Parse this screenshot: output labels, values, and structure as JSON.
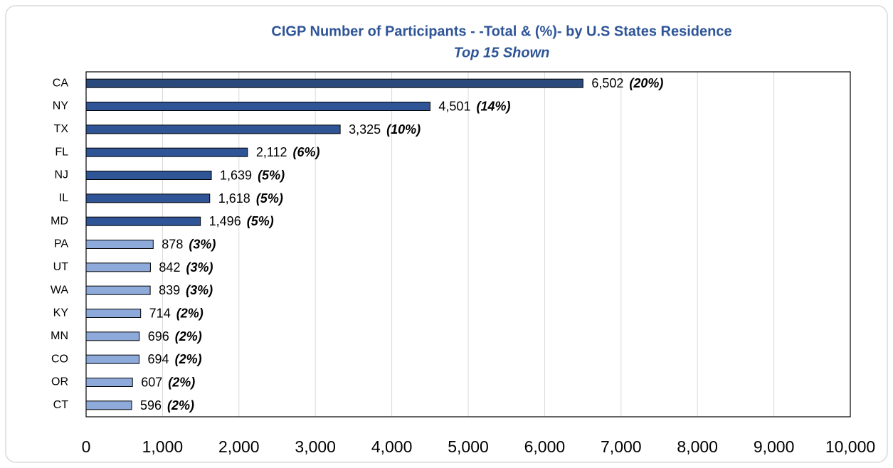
{
  "chart_data": {
    "type": "bar",
    "orientation": "horizontal",
    "title": "CIGP Number of Participants  - -Total &  (%)- by U.S States Residence",
    "subtitle": "Top 15 Shown",
    "categories": [
      "CA",
      "NY",
      "TX",
      "FL",
      "NJ",
      "IL",
      "MD",
      "PA",
      "UT",
      "WA",
      "KY",
      "MN",
      "CO",
      "OR",
      "CT"
    ],
    "values": [
      6502,
      4501,
      3325,
      2112,
      1639,
      1618,
      1496,
      878,
      842,
      839,
      714,
      696,
      694,
      607,
      596
    ],
    "value_labels": [
      "6,502",
      "4,501",
      "3,325",
      "2,112",
      "1,639",
      "1,618",
      "1,496",
      "878",
      "842",
      "839",
      "714",
      "696",
      "694",
      "607",
      "596"
    ],
    "percents": [
      20,
      14,
      10,
      6,
      5,
      5,
      5,
      3,
      3,
      3,
      2,
      2,
      2,
      2,
      2
    ],
    "percent_labels": [
      "(20%)",
      "(14%)",
      "(10%)",
      "(6%)",
      "(5%)",
      "(5%)",
      "(5%)",
      "(3%)",
      "(3%)",
      "(3%)",
      "(2%)",
      "(2%)",
      "(2%)",
      "(2%)",
      "(2%)"
    ],
    "colors": [
      "#2a4a7b",
      "#2f5597",
      "#2f5597",
      "#2f5597",
      "#2f5597",
      "#2f5597",
      "#2f5597",
      "#8eaadb",
      "#8eaadb",
      "#8eaadb",
      "#8eaadb",
      "#8eaadb",
      "#8eaadb",
      "#8eaadb",
      "#8eaadb"
    ],
    "xlim": [
      0,
      10000
    ],
    "xticks": [
      0,
      {
        "value": 1000,
        "label": "1,000"
      },
      {
        "value": 2000,
        "label": "2,000"
      },
      {
        "value": 3000,
        "label": "3,000"
      },
      {
        "value": 4000,
        "label": "4,000"
      },
      {
        "value": 5000,
        "label": "5,000"
      },
      {
        "value": 6000,
        "label": "6,000"
      },
      {
        "value": 7000,
        "label": "7,000"
      },
      {
        "value": 8000,
        "label": "8,000"
      },
      {
        "value": 9000,
        "label": "9,000"
      },
      {
        "value": 10000,
        "label": "10,000"
      }
    ],
    "grid": true
  }
}
